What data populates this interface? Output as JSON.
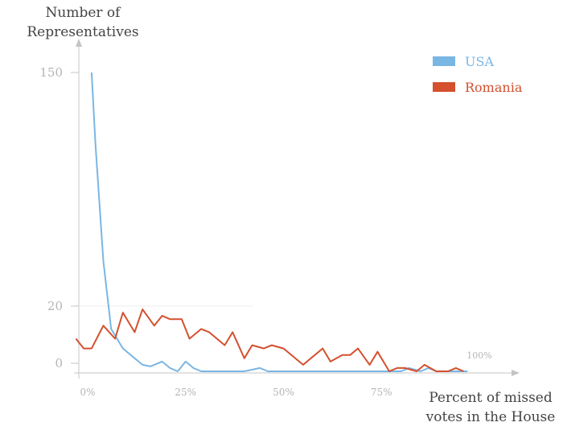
{
  "chart_data": {
    "type": "line",
    "ylabel_lines": [
      "Number of",
      "Representatives"
    ],
    "xlabel_lines": [
      "Percent of missed",
      "votes in the House"
    ],
    "x_ticks": [
      {
        "value": 0,
        "label": "0%"
      },
      {
        "value": 25,
        "label": "25%"
      },
      {
        "value": 50,
        "label": "50%"
      },
      {
        "value": 75,
        "label": "75%"
      },
      {
        "value": 100,
        "label": "100%"
      }
    ],
    "y_ticks": [
      {
        "value": 0,
        "label": "0"
      },
      {
        "value": 20,
        "label": "20"
      },
      {
        "value": 150,
        "label": "150"
      }
    ],
    "xlim": [
      0,
      100
    ],
    "y_scale": "broken (0-20 expanded, 20-150 compressed)",
    "legend_position": "top-right",
    "series": [
      {
        "name": "USA",
        "color": "#7ab6e4",
        "x": [
          1,
          2,
          4,
          6,
          9,
          12,
          14,
          16,
          19,
          21,
          23,
          25,
          27,
          29,
          32,
          35,
          40,
          44,
          46,
          50,
          55,
          60,
          65,
          70,
          76,
          80,
          82,
          85,
          87,
          89,
          92,
          94,
          97
        ],
        "y": [
          150,
          110,
          45,
          13,
          7,
          4,
          2,
          1.5,
          3,
          1,
          0,
          3,
          1,
          0,
          0,
          0,
          0,
          1,
          0,
          0,
          0,
          0,
          0,
          0,
          0,
          0,
          1,
          0,
          1,
          0,
          0,
          0,
          0
        ]
      },
      {
        "name": "Romania",
        "color": "#d4502e",
        "x": [
          -3,
          -1,
          1,
          4,
          7,
          9,
          12,
          14,
          17,
          19,
          21,
          24,
          26,
          29,
          31,
          35,
          37,
          40,
          42,
          45,
          47,
          50,
          55,
          60,
          62,
          65,
          67,
          69,
          72,
          74,
          77,
          79,
          81,
          84,
          86,
          89,
          92,
          94,
          96
        ],
        "y": [
          10,
          7,
          7,
          14,
          10,
          18,
          12,
          19,
          14,
          17,
          16,
          16,
          10,
          13,
          12,
          8,
          12,
          4,
          8,
          7,
          8,
          7,
          2,
          7,
          3,
          5,
          5,
          7,
          2,
          6,
          0,
          1,
          1,
          0,
          2,
          0,
          0,
          1,
          0
        ]
      }
    ]
  }
}
